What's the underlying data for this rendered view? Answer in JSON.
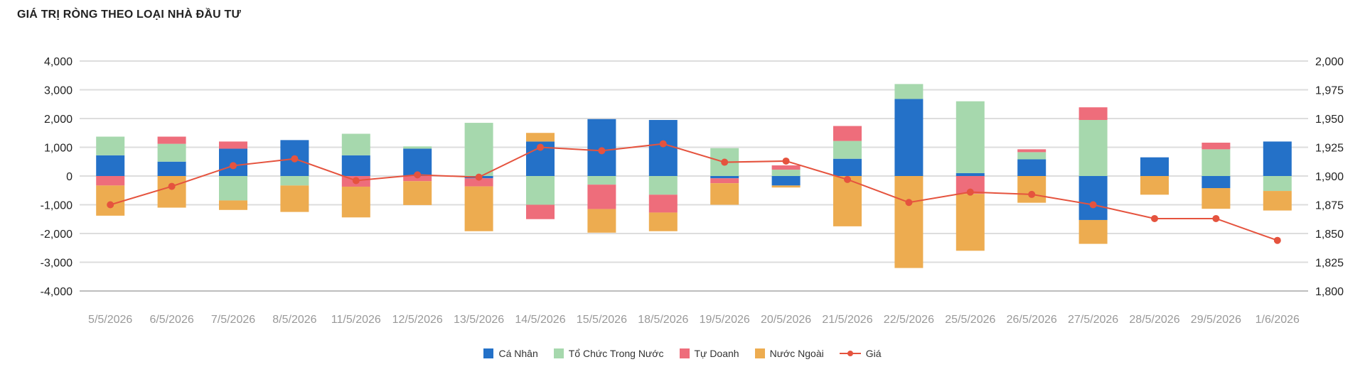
{
  "chart_data": {
    "type": "bar",
    "title": "GIÁ TRỊ RÒNG THEO LOẠI NHÀ ĐẦU TƯ",
    "categories": [
      "5/5/2026",
      "6/5/2026",
      "7/5/2026",
      "8/5/2026",
      "11/5/2026",
      "12/5/2026",
      "13/5/2026",
      "14/5/2026",
      "15/5/2026",
      "18/5/2026",
      "19/5/2026",
      "20/5/2026",
      "21/5/2026",
      "22/5/2026",
      "25/5/2026",
      "26/5/2026",
      "27/5/2026",
      "28/5/2026",
      "29/5/2026",
      "1/6/2026"
    ],
    "stacked": true,
    "series": [
      {
        "name": "Cá Nhân",
        "color": "#2471c8",
        "values": [
          720,
          500,
          950,
          1250,
          720,
          950,
          -80,
          1200,
          1980,
          1950,
          -80,
          -330,
          600,
          2680,
          100,
          580,
          -1530,
          650,
          -420,
          1200
        ]
      },
      {
        "name": "Tổ Chức Trong Nước",
        "color": "#a6d8ad",
        "values": [
          650,
          620,
          -850,
          -330,
          750,
          80,
          1850,
          -1000,
          -300,
          -650,
          970,
          220,
          620,
          520,
          2500,
          250,
          1950,
          0,
          930,
          -520
        ]
      },
      {
        "name": "Tự Doanh",
        "color": "#ee6d7b",
        "values": [
          -330,
          250,
          250,
          0,
          -370,
          -180,
          -280,
          -500,
          -850,
          -620,
          -170,
          150,
          520,
          0,
          -620,
          100,
          440,
          0,
          230,
          0
        ]
      },
      {
        "name": "Nước Ngoài",
        "color": "#edac50",
        "values": [
          -1050,
          -1100,
          -330,
          -920,
          -1070,
          -830,
          -1560,
          300,
          -820,
          -650,
          -750,
          -70,
          -1750,
          -3200,
          -1980,
          -930,
          -830,
          -650,
          -720,
          -680
        ]
      }
    ],
    "line": {
      "name": "Giá",
      "color": "#e5533e",
      "axis": "right",
      "values": [
        1875,
        1891,
        1909,
        1915,
        1896,
        1901,
        1899,
        1925,
        1922,
        1928,
        1912,
        1913,
        1897,
        1877,
        1886,
        1884,
        1875,
        1863,
        1863,
        1844
      ]
    },
    "y_left": {
      "min": -4000,
      "max": 4000,
      "step": 1000,
      "ticks": [
        "-4,000",
        "-3,000",
        "-2,000",
        "-1,000",
        "0",
        "1,000",
        "2,000",
        "3,000",
        "4,000"
      ]
    },
    "y_right": {
      "min": 1800,
      "max": 2000,
      "step": 25,
      "ticks": [
        "1,800",
        "1,825",
        "1,850",
        "1,875",
        "1,900",
        "1,925",
        "1,950",
        "1,975",
        "2,000"
      ]
    },
    "grid": true,
    "legend_position": "bottom"
  }
}
